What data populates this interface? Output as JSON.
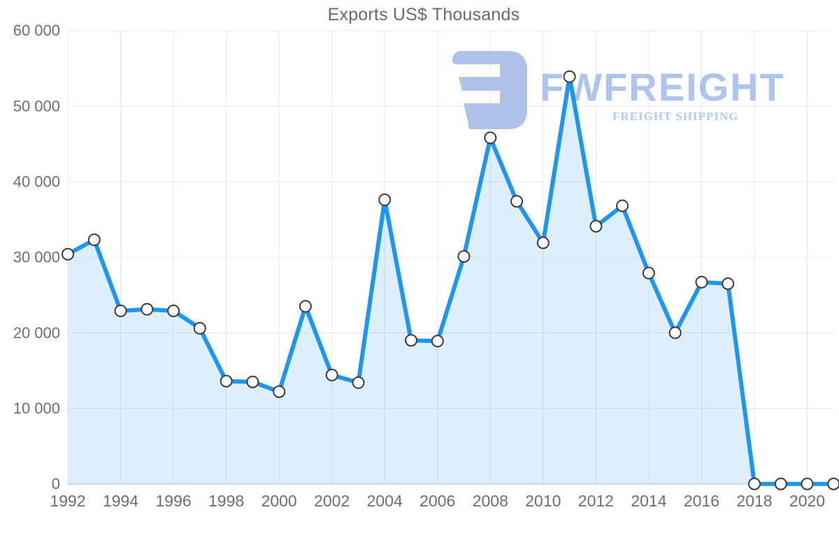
{
  "title": "Exports US$ Thousands",
  "watermark": {
    "brand": "FWFREIGHT",
    "tagline": "FREIGHT SHIPPING",
    "logo_color": "#a9bee9"
  },
  "colors": {
    "line": "#1d96f2",
    "area_fill": "#1d96f2",
    "area_fill_opacity": 0.15,
    "marker_fill": "#ffffff",
    "marker_stroke": "#3a3a3a",
    "grid": "#e7e8ea",
    "axis_line": "#c5d4e6",
    "axis_text": "#6e6e6e",
    "title_text": "#696969"
  },
  "chart_data": {
    "type": "area",
    "title": "Exports US$ Thousands",
    "xlabel": "",
    "ylabel": "",
    "x": [
      1992,
      1993,
      1994,
      1995,
      1996,
      1997,
      1998,
      1999,
      2000,
      2001,
      2002,
      2003,
      2004,
      2005,
      2006,
      2007,
      2008,
      2009,
      2010,
      2011,
      2012,
      2013,
      2014,
      2015,
      2016,
      2017,
      2018,
      2019,
      2020,
      2021
    ],
    "values": [
      30400,
      32300,
      22900,
      23100,
      22900,
      20600,
      13600,
      13500,
      12200,
      23500,
      14400,
      13400,
      37600,
      19000,
      18900,
      30100,
      45800,
      37400,
      31900,
      53900,
      34100,
      36800,
      27900,
      20000,
      26700,
      26500,
      0,
      0,
      0,
      0
    ],
    "ylim": [
      0,
      60000
    ],
    "ytick_step": 10000,
    "yticks": [
      "0",
      "10 000",
      "20 000",
      "30 000",
      "40 000",
      "50 000",
      "60 000"
    ],
    "xticks": [
      1992,
      1994,
      1996,
      1998,
      2000,
      2002,
      2004,
      2006,
      2008,
      2010,
      2012,
      2014,
      2016,
      2018,
      2020
    ],
    "grid": true,
    "legend": false,
    "marker": "circle"
  }
}
